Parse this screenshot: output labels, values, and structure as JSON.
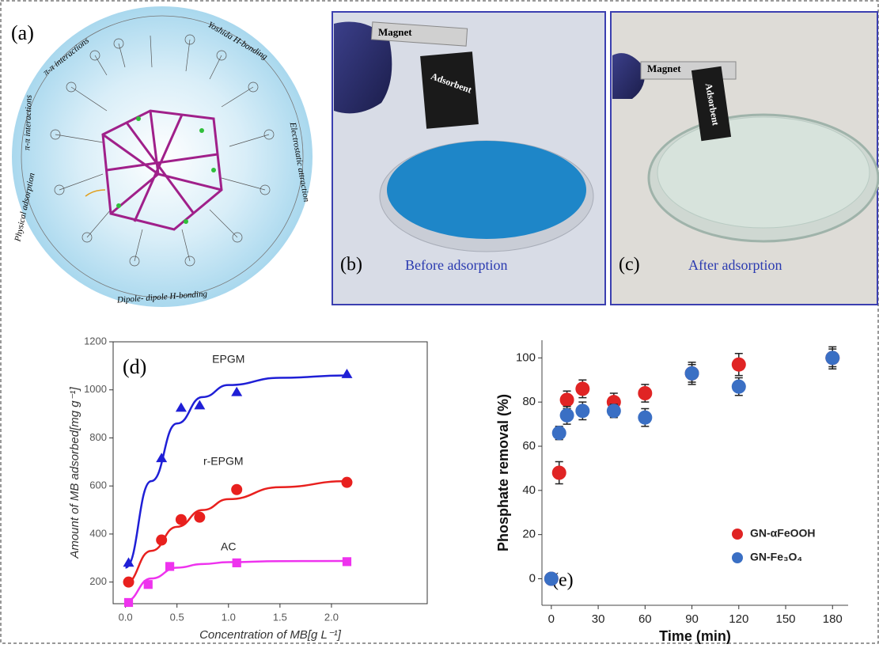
{
  "panels": {
    "a": {
      "label": "(a)",
      "annotations": [
        "π-π interactions",
        "Yoshida H-bonding",
        "Electrostatic attraction",
        "Dipole- dipole H-bonding",
        "Physical adsorption",
        "π-π interactions"
      ]
    },
    "b": {
      "label": "(b)",
      "caption": "Before adsorption",
      "magnet": "Magnet",
      "adsorbent": "Adsorbent"
    },
    "c": {
      "label": "(c)",
      "caption": "After adsorption",
      "magnet": "Magnet",
      "adsorbent": "Adsorbent"
    }
  },
  "chart_data": [
    {
      "type": "scatter",
      "panel_label": "(d)",
      "x_label": "Concentration of MB[g L⁻¹]",
      "y_label": "Amount of MB adsorbed[mg g⁻¹]",
      "xlim": [
        -0.12,
        2.93
      ],
      "ylim": [
        110,
        1200
      ],
      "xticks": [
        {
          "value": 0,
          "label": "0.0"
        },
        0.5,
        {
          "value": 1,
          "label": "1.0"
        },
        1.5,
        {
          "value": 2,
          "label": "2.0"
        }
      ],
      "yticks": [
        200,
        400,
        600,
        800,
        1000,
        1200
      ],
      "series": [
        {
          "name": "EPGM",
          "color": "#1f1fd6",
          "marker": "triangle",
          "x": [
            0.03,
            0.35,
            0.54,
            0.72,
            1.08,
            2.15
          ],
          "values": [
            280,
            715,
            925,
            935,
            990,
            1065
          ],
          "fit_x": [
            0,
            0.25,
            0.5,
            0.75,
            1,
            1.5,
            2.15
          ],
          "fit_values": [
            260,
            620,
            860,
            970,
            1020,
            1050,
            1060
          ]
        },
        {
          "name": "r-EPGM",
          "color": "#e8201e",
          "marker": "circle",
          "x": [
            0.03,
            0.35,
            0.54,
            0.72,
            1.08,
            2.15
          ],
          "values": [
            200,
            375,
            460,
            470,
            585,
            615
          ],
          "fit_x": [
            0,
            0.25,
            0.5,
            0.75,
            1,
            1.5,
            2.15
          ],
          "fit_values": [
            195,
            330,
            430,
            500,
            545,
            595,
            620
          ]
        },
        {
          "name": "AC",
          "color": "#ee33ee",
          "marker": "square",
          "x": [
            0.03,
            0.22,
            0.43,
            1.08,
            2.15
          ],
          "values": [
            115,
            190,
            265,
            280,
            285
          ],
          "fit_x": [
            0,
            0.25,
            0.5,
            0.75,
            1,
            1.5,
            2.15
          ],
          "fit_values": [
            120,
            215,
            260,
            275,
            283,
            287,
            288
          ]
        }
      ]
    },
    {
      "type": "scatter",
      "panel_label": "(e)",
      "x_label": "Time (min)",
      "y_label": "Phosphate removal (%)",
      "xlim": [
        -6,
        190
      ],
      "ylim": [
        -12,
        108
      ],
      "xticks": [
        0,
        30,
        60,
        90,
        120,
        150,
        180
      ],
      "yticks": [
        0,
        20,
        40,
        60,
        80,
        100
      ],
      "legend": "lower right",
      "x": [
        0,
        5,
        10,
        20,
        40,
        60,
        90,
        120,
        180
      ],
      "series": [
        {
          "name": "GN-αFeOOH",
          "color": "#e02424",
          "marker": "circle",
          "values": [
            0,
            48,
            81,
            86,
            80,
            84,
            93,
            97,
            100
          ],
          "errors": [
            0,
            5,
            4,
            4,
            4,
            4,
            4,
            5,
            4
          ]
        },
        {
          "name": "GN-Fe₃O₄",
          "color": "#3a6fc4",
          "marker": "circle",
          "values": [
            0,
            66,
            74,
            76,
            76,
            73,
            93,
            87,
            100
          ],
          "errors": [
            0,
            3,
            4,
            4,
            3,
            4,
            5,
            4,
            5
          ]
        }
      ]
    }
  ]
}
